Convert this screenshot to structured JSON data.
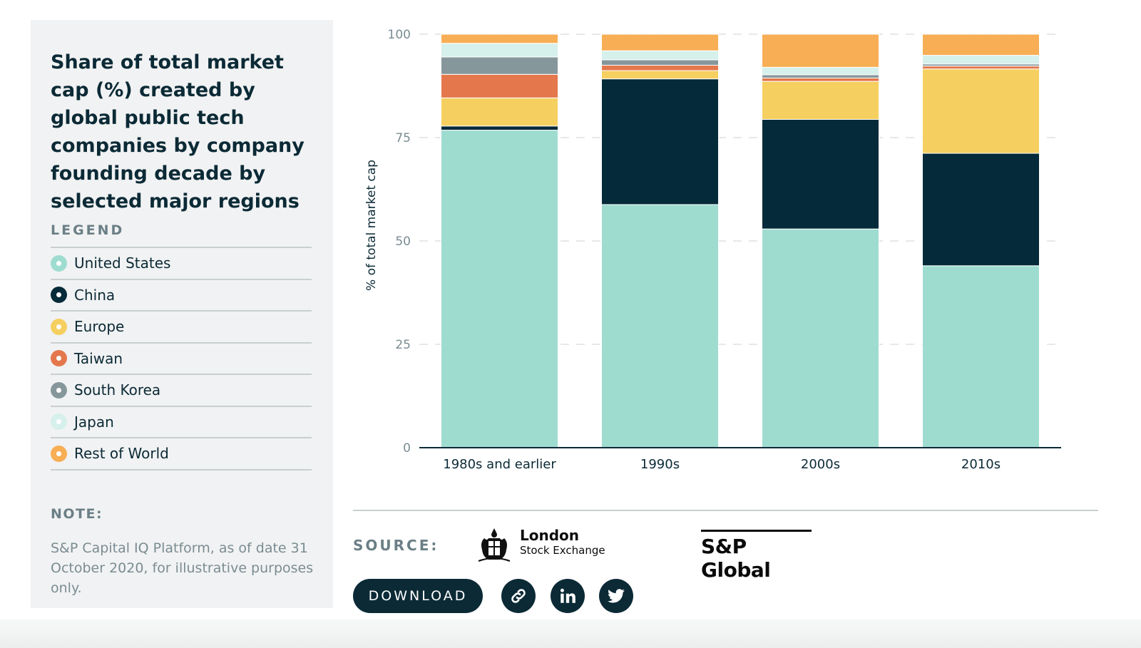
{
  "panel": {
    "title": "Share of total market cap (%) created by global public tech companies by company founding decade by selected major regions",
    "legend_heading": "LEGEND",
    "note_heading": "NOTE:",
    "note_text": "S&P Capital IQ Platform, as of date 31 October 2020, for illustrative purposes only."
  },
  "legend": [
    {
      "label": "United States",
      "color": "#9edcd0"
    },
    {
      "label": "China",
      "color": "#052a39"
    },
    {
      "label": "Europe",
      "color": "#f5cf5f"
    },
    {
      "label": "Taiwan",
      "color": "#e4774c"
    },
    {
      "label": "South Korea",
      "color": "#86979b"
    },
    {
      "label": "Japan",
      "color": "#d6f0eb"
    },
    {
      "label": "Rest of World",
      "color": "#f7ae55"
    }
  ],
  "chart_data": {
    "type": "bar",
    "stacked": true,
    "categories": [
      "1980s and earlier",
      "1990s",
      "2000s",
      "2010s"
    ],
    "ylabel": "% of total market cap",
    "ylim": [
      0,
      100
    ],
    "yticks": [
      0,
      25,
      50,
      75,
      100
    ],
    "grid": true,
    "series": [
      {
        "name": "United States",
        "color": "#9edcd0",
        "values": [
          76.8,
          58.8,
          52.9,
          44.0
        ]
      },
      {
        "name": "China",
        "color": "#052a39",
        "values": [
          1.0,
          30.4,
          26.5,
          27.2
        ]
      },
      {
        "name": "Europe",
        "color": "#f5cf5f",
        "values": [
          6.8,
          2.0,
          9.2,
          20.4
        ]
      },
      {
        "name": "Taiwan",
        "color": "#e4774c",
        "values": [
          5.7,
          1.3,
          0.8,
          0.7
        ]
      },
      {
        "name": "South Korea",
        "color": "#86979b",
        "values": [
          4.2,
          1.3,
          0.8,
          0.5
        ]
      },
      {
        "name": "Japan",
        "color": "#d6f0eb",
        "values": [
          3.3,
          2.2,
          1.8,
          2.1
        ]
      },
      {
        "name": "Rest of World",
        "color": "#f7ae55",
        "values": [
          2.2,
          4.0,
          8.0,
          5.1
        ]
      }
    ]
  },
  "footer": {
    "source_label": "SOURCE:",
    "lse_name": "London",
    "lse_sub": "Stock Exchange",
    "sp_logo": "S&P Global",
    "download_label": "DOWNLOAD"
  },
  "icons": {
    "link": "link-icon",
    "linkedin": "linkedin-icon",
    "twitter": "twitter-icon"
  }
}
